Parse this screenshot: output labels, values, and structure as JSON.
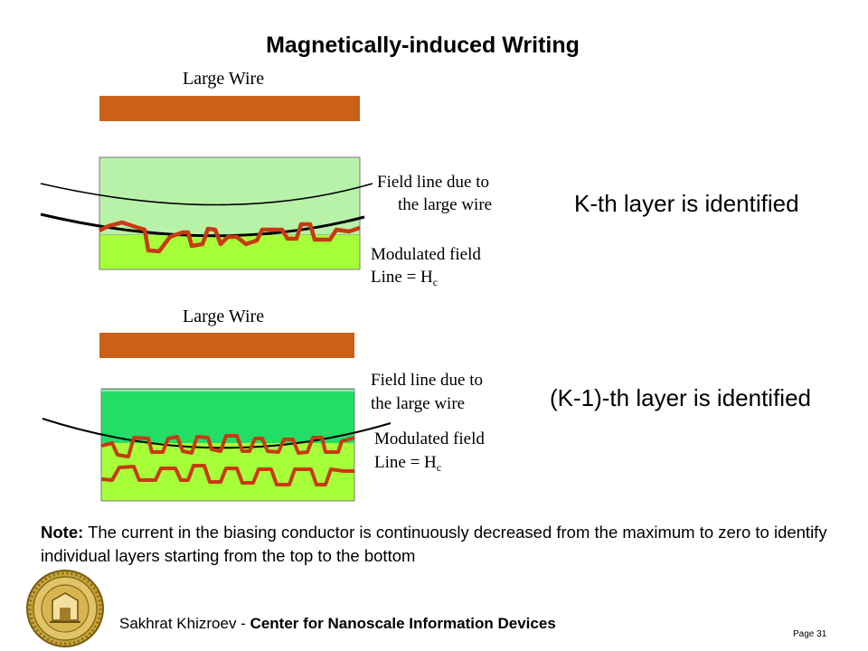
{
  "slide": {
    "title": "Magnetically-induced Writing",
    "top_panel": {
      "wire_label": "Large Wire",
      "field_label_line1": "Field line due to",
      "field_label_line2": "the large wire",
      "modulated_label_line1": "Modulated field",
      "modulated_label_line2_prefix": "Line = H",
      "modulated_label_sub": "c",
      "identified_text": "K-th layer is identified"
    },
    "bottom_panel": {
      "wire_label": "Large Wire",
      "field_label_line1": "Field line due to",
      "field_label_line2": "the large wire",
      "modulated_label_line1": "Modulated field",
      "modulated_label_line2_prefix": "Line = H",
      "modulated_label_sub": "c",
      "identified_text": "(K-1)-th layer is identified"
    },
    "note": {
      "label": "Note:",
      "text": " The current in the biasing conductor is continuously decreased from the maximum to zero to identify individual layers starting from the top to the bottom"
    },
    "footer": {
      "author": "Sakhrat Khizroev - ",
      "center": "Center for Nanoscale Information Devices",
      "page": "Page 31"
    },
    "colors": {
      "wire": "#cc6018",
      "upper_layer_light": "#b8f2a8",
      "upper_layer_dark": "#22dd66",
      "bottom_layer": "#a6ff38",
      "modulated_line": "#c83a12",
      "field_line": "#000000",
      "logo": "#b8962a"
    },
    "logo_icon": "university-seal-icon"
  }
}
